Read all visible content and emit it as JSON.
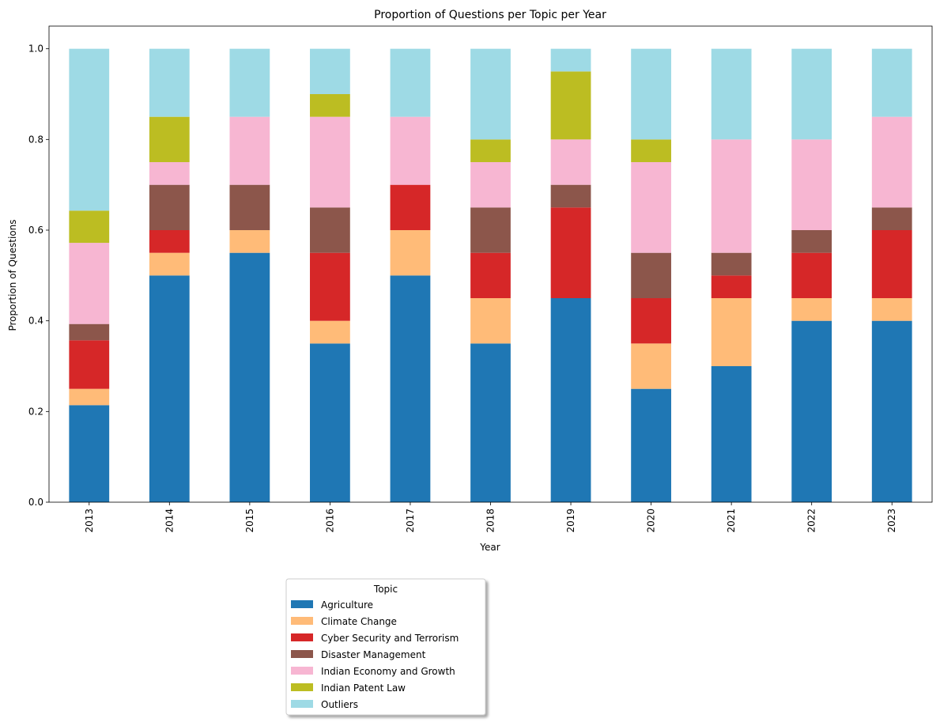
{
  "chart_data": {
    "type": "bar",
    "stacked": true,
    "title": "Proportion of Questions per Topic per Year",
    "xlabel": "Year",
    "ylabel": "Proportion of Questions",
    "ylim": [
      0,
      1.05
    ],
    "yticks": [
      "0.0",
      "0.2",
      "0.4",
      "0.6",
      "0.8",
      "1.0"
    ],
    "grid": false,
    "legend": {
      "title": "Topic",
      "placement": "bottom-center-below"
    },
    "categories": [
      "2013",
      "2014",
      "2015",
      "2016",
      "2017",
      "2018",
      "2019",
      "2020",
      "2021",
      "2022",
      "2023"
    ],
    "series": [
      {
        "name": "Agriculture",
        "color": "#1f77b4",
        "values": [
          0.214,
          0.5,
          0.55,
          0.35,
          0.5,
          0.35,
          0.45,
          0.25,
          0.3,
          0.4,
          0.4
        ]
      },
      {
        "name": "Climate Change",
        "color": "#ffbb78",
        "values": [
          0.036,
          0.05,
          0.05,
          0.05,
          0.1,
          0.1,
          0.0,
          0.1,
          0.15,
          0.05,
          0.05
        ]
      },
      {
        "name": "Cyber Security and Terrorism",
        "color": "#d62728",
        "values": [
          0.107,
          0.05,
          0.0,
          0.15,
          0.1,
          0.1,
          0.2,
          0.1,
          0.05,
          0.1,
          0.15
        ]
      },
      {
        "name": "Disaster Management",
        "color": "#8c564b",
        "values": [
          0.036,
          0.1,
          0.1,
          0.1,
          0.0,
          0.1,
          0.05,
          0.1,
          0.05,
          0.05,
          0.05
        ]
      },
      {
        "name": "Indian Economy and Growth",
        "color": "#f7b6d2",
        "values": [
          0.179,
          0.05,
          0.15,
          0.2,
          0.15,
          0.1,
          0.1,
          0.2,
          0.25,
          0.2,
          0.2
        ]
      },
      {
        "name": "Indian Patent Law",
        "color": "#bcbd22",
        "values": [
          0.071,
          0.1,
          0.0,
          0.05,
          0.0,
          0.05,
          0.15,
          0.05,
          0.0,
          0.0,
          0.0
        ]
      },
      {
        "name": "Outliers",
        "color": "#9edae5",
        "values": [
          0.357,
          0.15,
          0.15,
          0.1,
          0.15,
          0.2,
          0.05,
          0.2,
          0.2,
          0.2,
          0.15
        ]
      }
    ]
  }
}
